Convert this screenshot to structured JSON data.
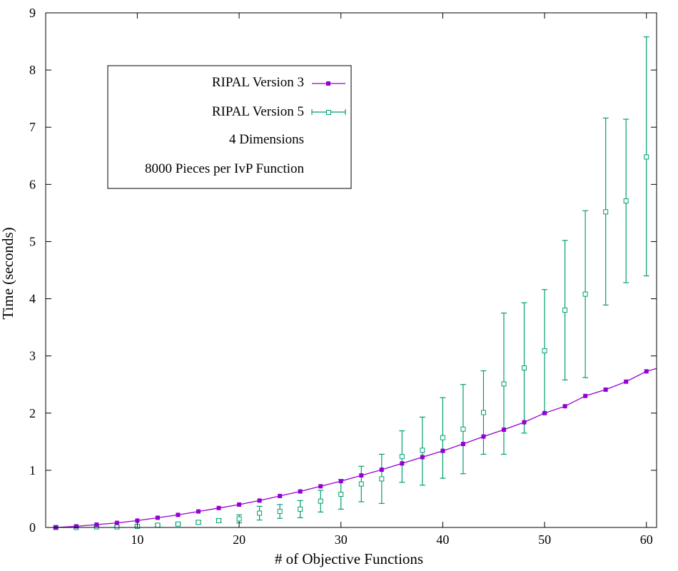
{
  "chart_data": {
    "type": "line",
    "xlabel": "# of Objective Functions",
    "ylabel": "Time (seconds)",
    "xlim": [
      1,
      61
    ],
    "ylim": [
      0,
      9
    ],
    "x_ticks": [
      10,
      20,
      30,
      40,
      50,
      60
    ],
    "y_ticks": [
      0,
      1,
      2,
      3,
      4,
      5,
      6,
      7,
      8,
      9
    ],
    "grid": false,
    "legend_position": "top-left",
    "legend": {
      "entries": [
        "RIPAL Version 3",
        "RIPAL Version 5"
      ],
      "notes": [
        "4 Dimensions",
        "8000 Pieces per IvP Function"
      ]
    },
    "series": [
      {
        "name": "RIPAL Version 3",
        "color": "#9400d3",
        "marker": "filled-square",
        "x": [
          2,
          4,
          6,
          8,
          10,
          12,
          14,
          16,
          18,
          20,
          22,
          24,
          26,
          28,
          30,
          32,
          34,
          36,
          38,
          40,
          42,
          44,
          46,
          48,
          50,
          52,
          54,
          56,
          58,
          60,
          61
        ],
        "y": [
          0.0,
          0.02,
          0.05,
          0.08,
          0.12,
          0.17,
          0.22,
          0.28,
          0.34,
          0.4,
          0.47,
          0.55,
          0.63,
          0.72,
          0.81,
          0.91,
          1.01,
          1.12,
          1.23,
          1.34,
          1.46,
          1.59,
          1.71,
          1.84,
          2.0,
          2.12,
          2.3,
          2.41,
          2.55,
          2.73,
          2.78
        ]
      },
      {
        "name": "RIPAL Version 5",
        "color": "#009e73",
        "marker": "open-square",
        "error_bars": true,
        "x": [
          2,
          4,
          6,
          8,
          10,
          12,
          14,
          16,
          18,
          20,
          22,
          24,
          26,
          28,
          30,
          32,
          34,
          36,
          38,
          40,
          42,
          44,
          46,
          48,
          50,
          52,
          54,
          56,
          58,
          60
        ],
        "y": [
          0.0,
          0.0,
          0.01,
          0.01,
          0.02,
          0.04,
          0.06,
          0.09,
          0.12,
          0.15,
          0.25,
          0.28,
          0.32,
          0.46,
          0.58,
          0.76,
          0.85,
          1.24,
          1.35,
          1.57,
          1.72,
          2.01,
          2.51,
          2.79,
          3.09,
          3.8,
          4.08,
          5.52,
          5.71,
          6.48
        ],
        "y_low": [
          0.0,
          0.0,
          0.0,
          0.0,
          0.01,
          0.02,
          0.04,
          0.06,
          0.09,
          0.08,
          0.13,
          0.16,
          0.17,
          0.27,
          0.32,
          0.45,
          0.42,
          0.79,
          0.74,
          0.86,
          0.94,
          1.28,
          1.28,
          1.65,
          2.0,
          2.58,
          2.62,
          3.89,
          4.28,
          4.4
        ],
        "y_high": [
          0.0,
          0.01,
          0.02,
          0.03,
          0.04,
          0.06,
          0.08,
          0.12,
          0.15,
          0.22,
          0.37,
          0.4,
          0.47,
          0.65,
          0.84,
          1.07,
          1.28,
          1.69,
          1.93,
          2.27,
          2.5,
          2.74,
          3.75,
          3.93,
          4.16,
          5.02,
          5.54,
          7.16,
          7.14,
          8.58
        ]
      }
    ]
  }
}
